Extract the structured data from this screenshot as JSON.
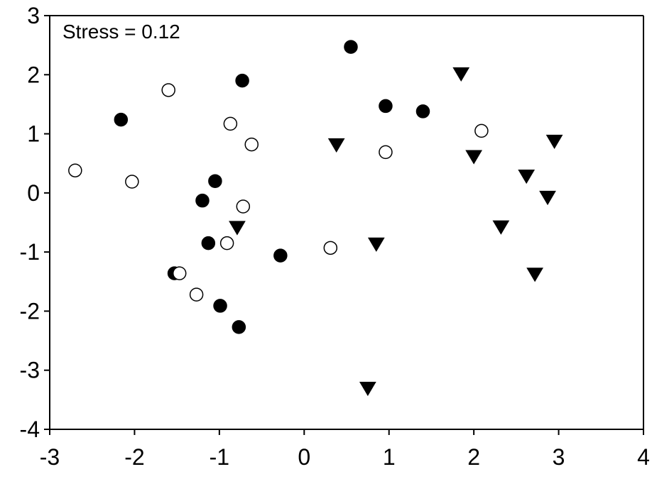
{
  "chart_data": {
    "type": "scatter",
    "title": "",
    "xlabel": "",
    "ylabel": "",
    "xlim": [
      -3,
      4
    ],
    "ylim": [
      -4,
      3
    ],
    "xticks": [
      -3,
      -2,
      -1,
      0,
      1,
      2,
      3,
      4
    ],
    "yticks": [
      -4,
      -3,
      -2,
      -1,
      0,
      1,
      2,
      3
    ],
    "xtick_labels": [
      "-3",
      "-2",
      "-1",
      "0",
      "1",
      "2",
      "3",
      "4"
    ],
    "ytick_labels": [
      "-4",
      "-3",
      "-2",
      "-1",
      "0",
      "1",
      "2",
      "3"
    ],
    "grid": false,
    "annotation": "Stress = 0.12",
    "series": [
      {
        "marker": "filled-circle",
        "color": "#000000",
        "points": [
          [
            0.55,
            2.47
          ],
          [
            -0.73,
            1.9
          ],
          [
            0.96,
            1.47
          ],
          [
            1.4,
            1.38
          ],
          [
            -2.16,
            1.24
          ],
          [
            -1.05,
            0.2
          ],
          [
            -1.2,
            -0.13
          ],
          [
            -1.13,
            -0.85
          ],
          [
            -0.28,
            -1.06
          ],
          [
            -1.53,
            -1.36
          ],
          [
            -0.99,
            -1.91
          ],
          [
            -0.77,
            -2.27
          ]
        ]
      },
      {
        "marker": "open-circle",
        "color": "#000000",
        "points": [
          [
            -1.6,
            1.74
          ],
          [
            -0.87,
            1.17
          ],
          [
            -0.62,
            0.82
          ],
          [
            2.09,
            1.05
          ],
          [
            0.96,
            0.69
          ],
          [
            -2.7,
            0.38
          ],
          [
            -2.03,
            0.19
          ],
          [
            -0.72,
            -0.23
          ],
          [
            -0.91,
            -0.85
          ],
          [
            0.31,
            -0.93
          ],
          [
            -1.47,
            -1.36
          ],
          [
            -1.27,
            -1.72
          ]
        ]
      },
      {
        "marker": "filled-down-triangle",
        "color": "#000000",
        "points": [
          [
            1.85,
            2.02
          ],
          [
            2.95,
            0.88
          ],
          [
            0.38,
            0.82
          ],
          [
            2.0,
            0.62
          ],
          [
            2.62,
            0.29
          ],
          [
            2.87,
            -0.07
          ],
          [
            -0.79,
            -0.58
          ],
          [
            2.32,
            -0.57
          ],
          [
            0.85,
            -0.86
          ],
          [
            2.72,
            -1.37
          ],
          [
            0.75,
            -3.3
          ]
        ]
      }
    ]
  }
}
